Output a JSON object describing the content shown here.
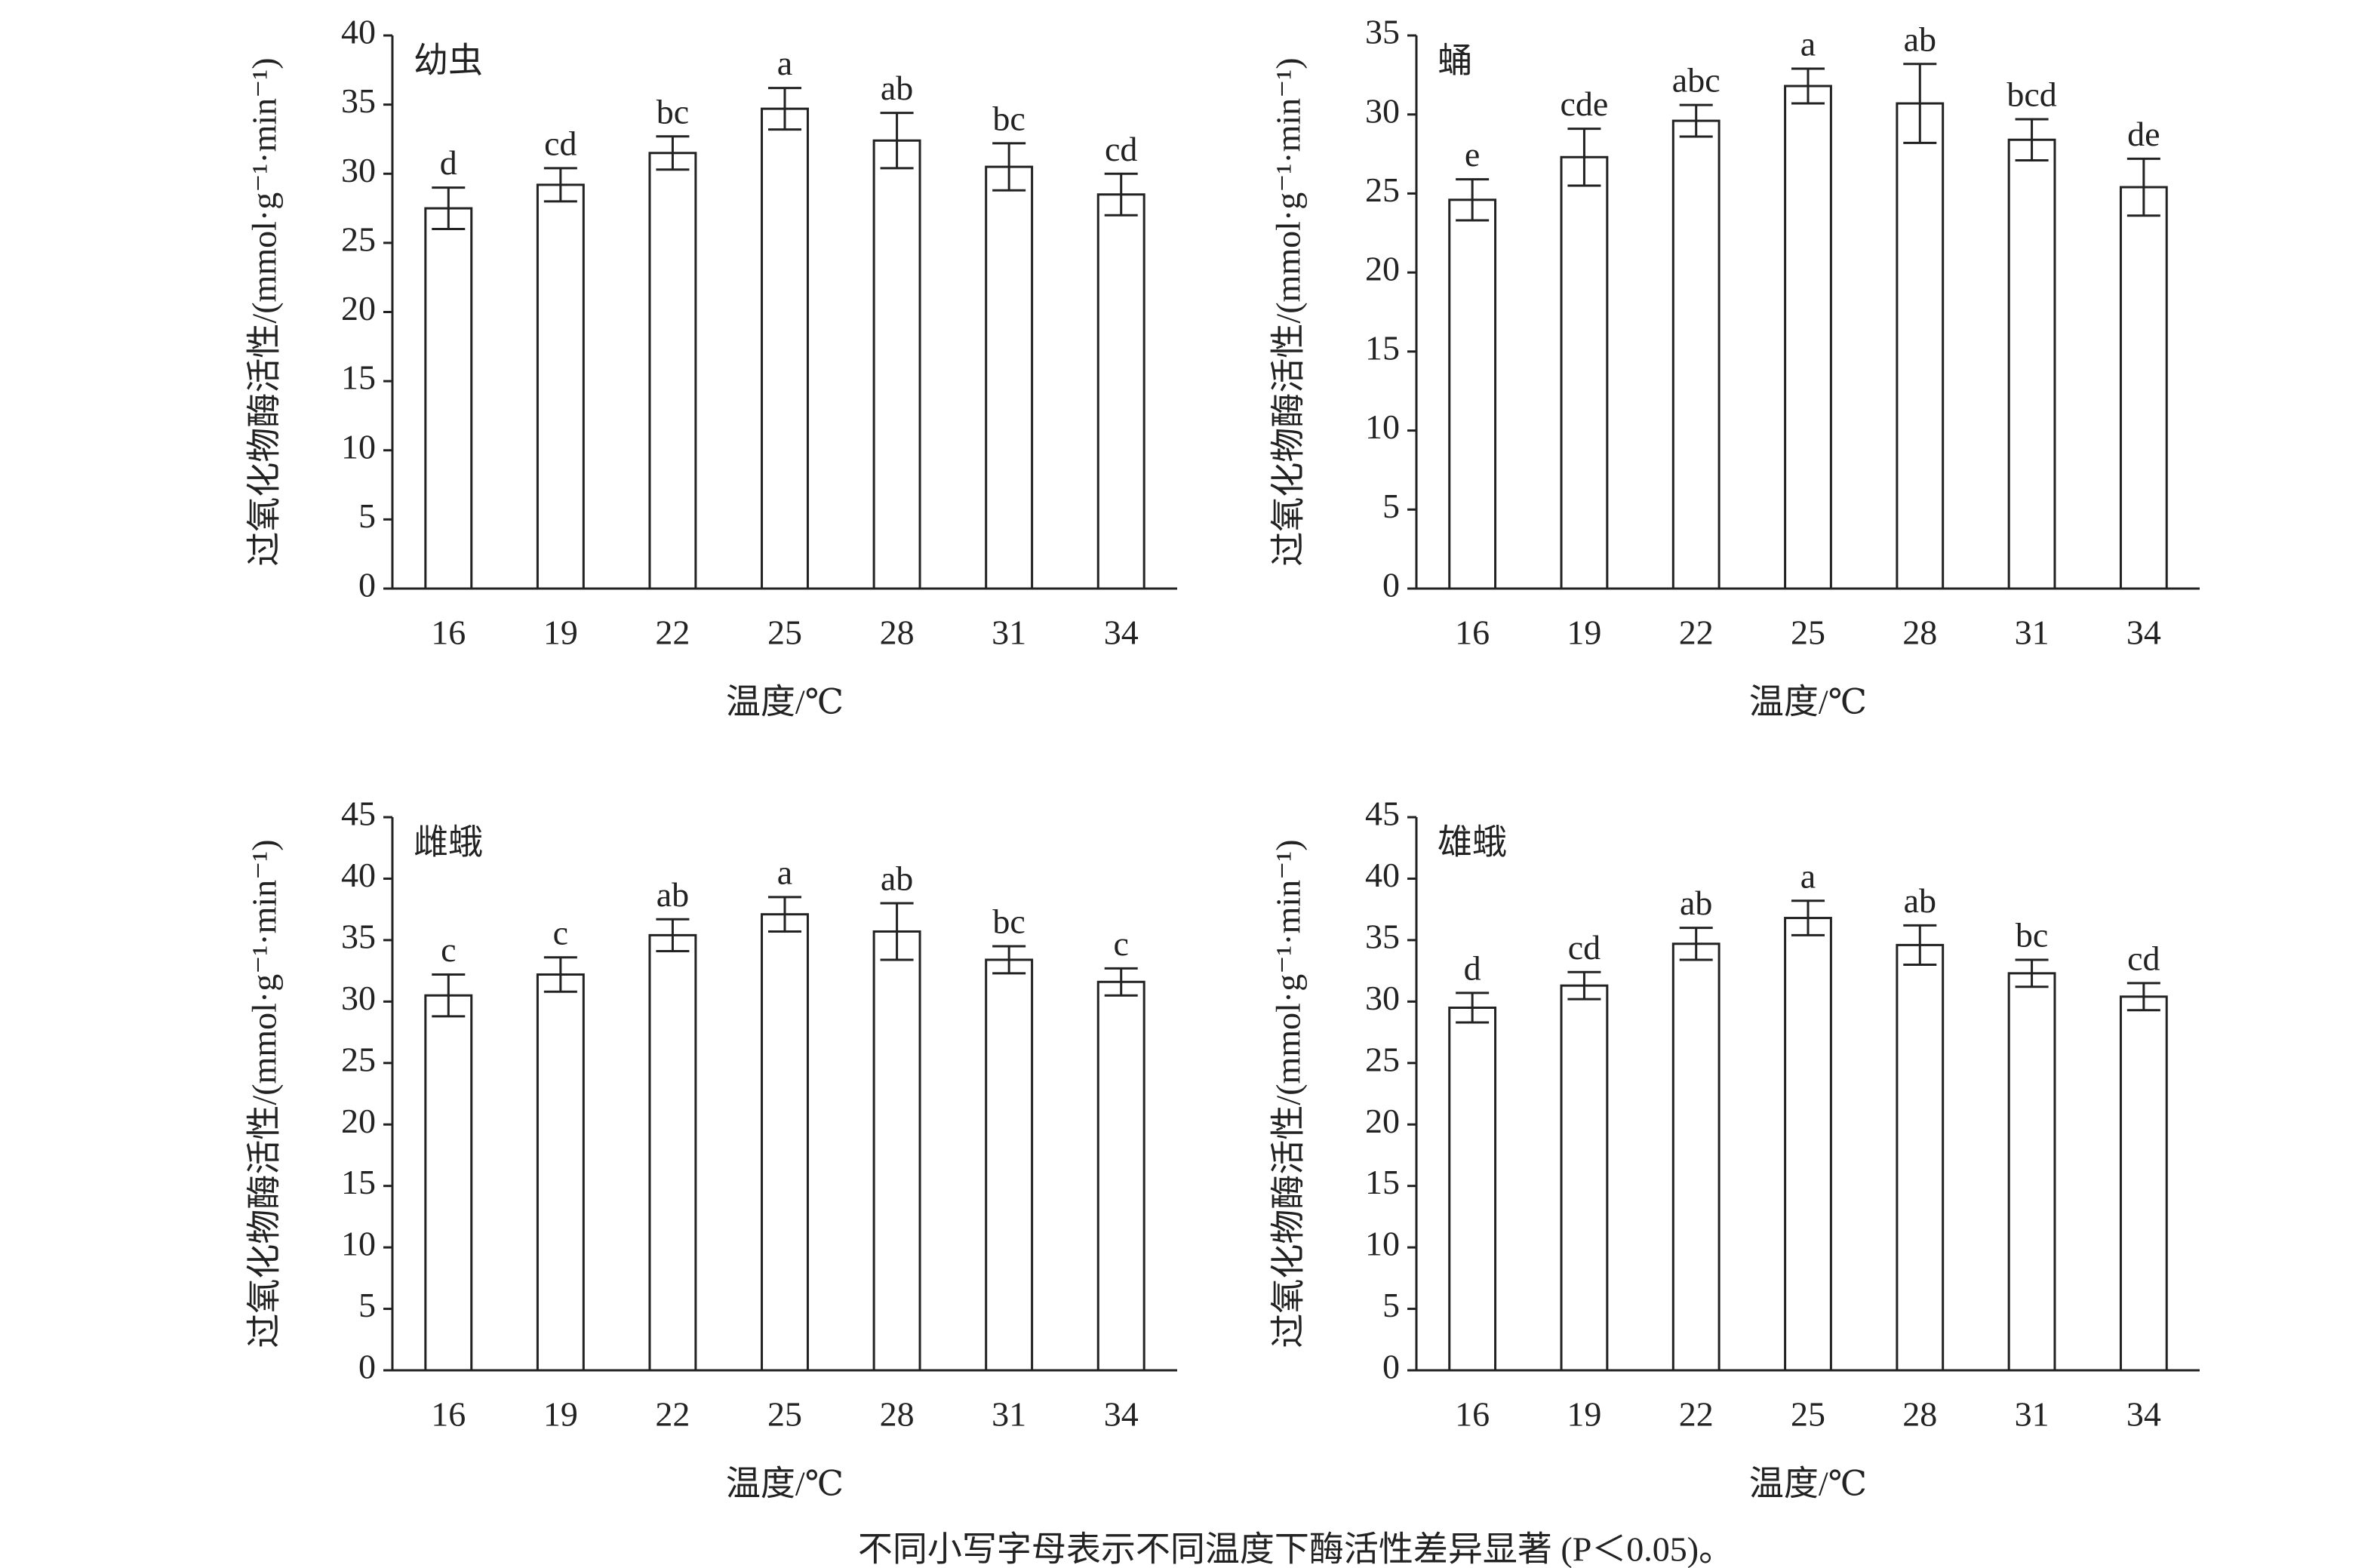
{
  "chart_data": [
    {
      "type": "bar",
      "title": "幼虫",
      "xlabel": "温度/℃",
      "ylabel": "过氧化物酶活性/(mmol·g⁻¹·min⁻¹)",
      "categories": [
        "16",
        "19",
        "22",
        "25",
        "28",
        "31",
        "34"
      ],
      "values": [
        27.5,
        29.2,
        31.5,
        34.7,
        32.4,
        30.5,
        28.5
      ],
      "errors": [
        1.5,
        1.2,
        1.2,
        1.5,
        2.0,
        1.7,
        1.5
      ],
      "significance_letters": [
        "d",
        "cd",
        "bc",
        "a",
        "ab",
        "bc",
        "cd"
      ],
      "color": "#ffffff",
      "ylim": [
        0,
        40
      ],
      "yticks": [
        0,
        5,
        10,
        15,
        20,
        25,
        30,
        35,
        40
      ]
    },
    {
      "type": "bar",
      "title": "蛹",
      "xlabel": "温度/℃",
      "ylabel": "过氧化物酶活性/(mmol·g⁻¹·min⁻¹)",
      "categories": [
        "16",
        "19",
        "22",
        "25",
        "28",
        "31",
        "34"
      ],
      "values": [
        24.6,
        27.3,
        29.6,
        31.8,
        30.7,
        28.4,
        25.4
      ],
      "errors": [
        1.3,
        1.8,
        1.0,
        1.1,
        2.5,
        1.3,
        1.8
      ],
      "significance_letters": [
        "e",
        "cde",
        "abc",
        "a",
        "ab",
        "bcd",
        "de"
      ],
      "color": "#ffffff",
      "ylim": [
        0,
        35
      ],
      "yticks": [
        0,
        5,
        10,
        15,
        20,
        25,
        30,
        35
      ]
    },
    {
      "type": "bar",
      "title": "雌蛾",
      "xlabel": "温度/℃",
      "ylabel": "过氧化物酶活性/(mmol·g⁻¹·min⁻¹)",
      "categories": [
        "16",
        "19",
        "22",
        "25",
        "28",
        "31",
        "34"
      ],
      "values": [
        30.5,
        32.2,
        35.4,
        37.1,
        35.7,
        33.4,
        31.6
      ],
      "errors": [
        1.7,
        1.4,
        1.3,
        1.4,
        2.3,
        1.1,
        1.1
      ],
      "significance_letters": [
        "c",
        "c",
        "ab",
        "a",
        "ab",
        "bc",
        "c"
      ],
      "color": "#ffffff",
      "ylim": [
        0,
        45
      ],
      "yticks": [
        0,
        5,
        10,
        15,
        20,
        25,
        30,
        35,
        40,
        45
      ]
    },
    {
      "type": "bar",
      "title": "雄蛾",
      "xlabel": "温度/℃",
      "ylabel": "过氧化物酶活性/(mmol·g⁻¹·min⁻¹)",
      "categories": [
        "16",
        "19",
        "22",
        "25",
        "28",
        "31",
        "34"
      ],
      "values": [
        29.5,
        31.3,
        34.7,
        36.8,
        34.6,
        32.3,
        30.4
      ],
      "errors": [
        1.2,
        1.1,
        1.3,
        1.4,
        1.6,
        1.1,
        1.1
      ],
      "significance_letters": [
        "d",
        "cd",
        "ab",
        "a",
        "ab",
        "bc",
        "cd"
      ],
      "color": "#ffffff",
      "ylim": [
        0,
        45
      ],
      "yticks": [
        0,
        5,
        10,
        15,
        20,
        25,
        30,
        35,
        40,
        45
      ]
    }
  ],
  "caption": "不同小写字母表示不同温度下酶活性差异显著 (P＜0.05)。"
}
